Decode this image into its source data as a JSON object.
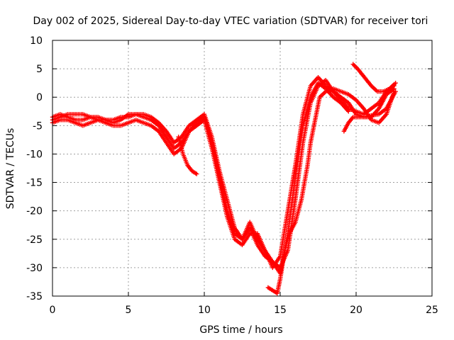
{
  "chart_data": {
    "type": "scatter",
    "title": "Day 002 of 2025, Sidereal Day-to-day VTEC variation (SDTVAR) for receiver tori",
    "xlabel": "GPS time / hours",
    "ylabel": "SDTVAR / TECUs",
    "xlim": [
      0,
      25
    ],
    "ylim": [
      -35,
      10
    ],
    "xticks": [
      "0",
      "5",
      "10",
      "15",
      "20",
      "25"
    ],
    "yticks": [
      "10",
      "5",
      "0",
      "-5",
      "-10",
      "-15",
      "-20",
      "-25",
      "-30",
      "-35"
    ],
    "grid": true,
    "marker": "+",
    "color": "#ff0000",
    "series": [
      {
        "x": [
          0.0,
          0.5,
          1.0,
          1.5,
          2.0,
          2.5,
          3.0,
          3.5,
          4.0,
          4.5,
          5.0,
          5.5,
          6.0,
          6.5,
          7.0,
          7.5,
          8.0,
          8.5,
          9.0,
          9.5,
          10.0,
          10.5,
          11.0,
          11.5,
          12.0,
          12.5,
          13.0,
          13.5,
          14.0,
          14.5,
          15.0,
          15.5,
          16.0,
          16.5,
          17.0,
          17.5,
          18.0,
          18.5,
          19.0,
          19.5,
          20.0,
          20.5,
          21.0,
          21.5,
          22.0,
          22.5
        ],
        "y": [
          -4,
          -3.5,
          -3,
          -3,
          -3,
          -3.5,
          -4,
          -4,
          -4,
          -3.5,
          -3.5,
          -3,
          -3,
          -3.5,
          -4.5,
          -6,
          -8,
          -7,
          -5,
          -4,
          -3,
          -7,
          -13,
          -18,
          -23,
          -25,
          -23,
          -26,
          -28,
          -29,
          -30,
          -27,
          -18,
          -8,
          -1,
          2,
          3,
          1,
          -0.5,
          -2,
          -2.5,
          -3,
          -2,
          -1,
          1,
          2
        ]
      },
      {
        "x": [
          0.0,
          0.5,
          1.0,
          1.5,
          2.0,
          2.5,
          3.0,
          3.5,
          4.0,
          4.5,
          5.0,
          5.5,
          6.0,
          6.5,
          7.0,
          7.5,
          8.0,
          8.5,
          9.0,
          9.5,
          10.0,
          10.5,
          11.0,
          11.5,
          12.0,
          12.5,
          13.0,
          13.5,
          14.0,
          14.5,
          15.0,
          15.5,
          16.0,
          16.5,
          17.0,
          17.5,
          18.0,
          18.5,
          19.0,
          19.5,
          20.0,
          20.5,
          21.0,
          21.5,
          22.0,
          22.5
        ],
        "y": [
          -4.5,
          -4,
          -4,
          -4.5,
          -5,
          -4.5,
          -4,
          -4.5,
          -5,
          -5,
          -4.5,
          -4,
          -4.5,
          -5,
          -6,
          -8,
          -10,
          -9,
          -6,
          -5,
          -4,
          -9,
          -15,
          -21,
          -25,
          -26,
          -24,
          -24,
          -27,
          -30,
          -28,
          -20,
          -12,
          -3,
          2,
          3.5,
          2,
          1,
          0,
          -1,
          -3,
          -3.5,
          -3.5,
          -2,
          0.5,
          1.5
        ]
      },
      {
        "x": [
          0.0,
          0.5,
          1.0,
          1.5,
          2.0,
          2.5,
          3.0,
          3.5,
          4.0,
          4.5,
          5.0,
          5.5,
          6.0,
          6.5,
          7.0,
          7.5,
          8.0,
          8.5,
          9.0,
          9.5,
          10.0,
          10.5,
          11.0,
          11.5,
          12.0,
          12.5,
          13.0,
          13.5,
          14.0,
          14.5,
          15.0,
          15.5,
          16.0,
          16.5,
          17.0,
          17.5,
          18.0,
          18.5,
          19.0,
          19.5
        ],
        "y": [
          -3.5,
          -3,
          -3.5,
          -4,
          -4,
          -3.5,
          -3.5,
          -4,
          -4.5,
          -4,
          -3,
          -3,
          -3.5,
          -4,
          -5,
          -7,
          -9,
          -8,
          -6,
          -4.5,
          -3.5,
          -8,
          -14,
          -20,
          -24,
          -25,
          -22,
          -25,
          -27,
          -29,
          -31,
          -24,
          -14,
          -5,
          0,
          2.5,
          1.5,
          0,
          -1,
          -2.5
        ]
      },
      {
        "x": [
          14.2,
          14.5,
          14.8,
          15.0,
          15.3,
          15.6,
          16.0,
          16.4,
          16.8,
          17.0,
          17.3,
          17.6,
          18.0,
          18.5,
          19.0,
          19.5,
          20.0,
          20.5,
          21.0,
          21.5,
          22.0,
          22.5
        ],
        "y": [
          -33.5,
          -34,
          -34.5,
          -32,
          -27,
          -24,
          -22,
          -18,
          -12,
          -8,
          -4,
          0,
          1,
          1.5,
          1,
          0.5,
          -0.5,
          -2,
          -4,
          -4.5,
          -3,
          1
        ]
      },
      {
        "x": [
          19.2,
          19.5,
          19.8,
          20.2,
          20.6,
          21.0,
          21.5,
          22.0,
          22.3,
          22.6
        ],
        "y": [
          -6,
          -4.5,
          -3.5,
          -3.5,
          -3.5,
          -3.2,
          -3,
          -2,
          -0.5,
          1
        ]
      },
      {
        "x": [
          19.8,
          20.1,
          20.4,
          20.7,
          21.0,
          21.4,
          21.8,
          22.2,
          22.6
        ],
        "y": [
          5.8,
          5,
          4,
          3,
          2,
          1,
          1,
          1.5,
          2.5
        ]
      },
      {
        "x": [
          8.3,
          8.6,
          8.9,
          9.2,
          9.5
        ],
        "y": [
          -7,
          -10,
          -12,
          -13,
          -13.5
        ]
      }
    ]
  }
}
